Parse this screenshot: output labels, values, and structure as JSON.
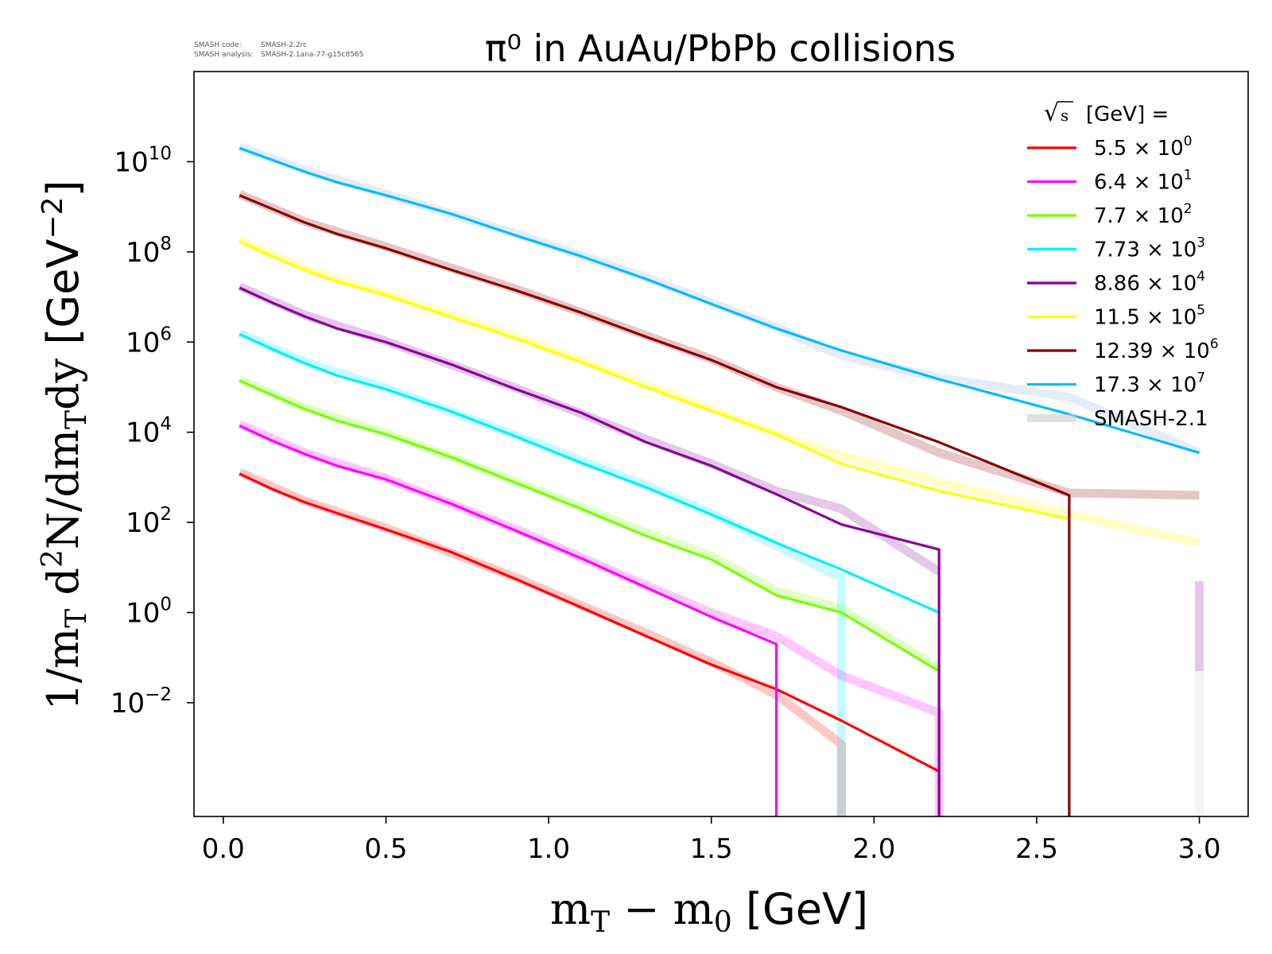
{
  "header": {
    "code_label": "SMASH code:",
    "code_value": "SMASH-2.2rc",
    "analysis_label": "SMASH analysis:",
    "analysis_value": "SMASH-2.1ana-77-g15c8565"
  },
  "chart_data": {
    "type": "line",
    "title": "π⁰ in AuAu/PbPb collisions",
    "xlabel": "m_T − m_0 [GeV]",
    "ylabel": "1/m_T d²N/dm_T dy [GeV⁻²]",
    "xlim": [
      -0.09,
      3.15
    ],
    "ylim": [
      3e-05,
      1000000000000
    ],
    "yscale": "log",
    "grid": false,
    "legend_position": "top-right",
    "legend_title": "√s [GeV] =",
    "x_ticks": [
      "0.0",
      "0.5",
      "1.0",
      "1.5",
      "2.0",
      "2.5",
      "3.0"
    ],
    "y_ticks": [
      {
        "mantissa": "10",
        "exponent": "−2"
      },
      {
        "mantissa": "10",
        "exponent": "0"
      },
      {
        "mantissa": "10",
        "exponent": "2"
      },
      {
        "mantissa": "10",
        "exponent": "4"
      },
      {
        "mantissa": "10",
        "exponent": "6"
      },
      {
        "mantissa": "10",
        "exponent": "8"
      },
      {
        "mantissa": "10",
        "exponent": "10"
      }
    ],
    "series": [
      {
        "name": "5.5 × 10",
        "name_sup": "0",
        "color": "#ff0000",
        "x": [
          0.05,
          0.15,
          0.25,
          0.35,
          0.5,
          0.7,
          0.9,
          1.1,
          1.3,
          1.5,
          1.7,
          1.9,
          2.2
        ],
        "y": [
          1200,
          550,
          280,
          160,
          70,
          22,
          5.5,
          1.3,
          0.3,
          0.07,
          0.02,
          0.004,
          0.0003
        ]
      },
      {
        "name": "6.4 × 10",
        "name_sup": "1",
        "color": "#ff00ff",
        "x": [
          0.05,
          0.15,
          0.25,
          0.35,
          0.5,
          0.7,
          0.9,
          1.1,
          1.3,
          1.5,
          1.7,
          1.7
        ],
        "y": [
          14000,
          6500,
          3300,
          1800,
          900,
          260,
          65,
          16,
          3.6,
          0.8,
          0.2,
          3e-05
        ]
      },
      {
        "name": "7.7 × 10",
        "name_sup": "2",
        "color": "#77ff00",
        "x": [
          0.05,
          0.15,
          0.25,
          0.35,
          0.5,
          0.7,
          0.9,
          1.1,
          1.3,
          1.5,
          1.7,
          1.9,
          2.2,
          2.2
        ],
        "y": [
          140000,
          67000,
          33000,
          18000,
          9000,
          2800,
          750,
          200,
          50,
          15,
          2.4,
          1.0,
          0.05,
          3e-05
        ]
      },
      {
        "name": "7.73 × 10",
        "name_sup": "3",
        "color": "#00eeff",
        "x": [
          0.05,
          0.15,
          0.25,
          0.35,
          0.5,
          0.7,
          0.9,
          1.1,
          1.3,
          1.5,
          1.7,
          1.9,
          2.2
        ],
        "y": [
          1500000,
          700000,
          340000,
          180000,
          90000,
          29000,
          8000,
          2100,
          600,
          150,
          35,
          9,
          1.0
        ]
      },
      {
        "name": "8.86 × 10",
        "name_sup": "4",
        "color": "#880099",
        "x": [
          0.05,
          0.15,
          0.25,
          0.35,
          0.5,
          0.7,
          0.9,
          1.1,
          1.3,
          1.5,
          1.7,
          1.9,
          2.2,
          2.2
        ],
        "y": [
          16000000,
          7500000,
          3700000,
          2000000,
          1000000,
          320000,
          90000,
          27000,
          6000,
          1800,
          420,
          90,
          25,
          3e-05
        ]
      },
      {
        "name": "11.5 × 10",
        "name_sup": "5",
        "color": "#ffff00",
        "x": [
          0.05,
          0.15,
          0.25,
          0.35,
          0.5,
          0.7,
          0.9,
          1.1,
          1.3,
          1.5,
          1.7,
          1.9,
          2.2,
          2.6
        ],
        "y": [
          170000000,
          80000000,
          40000000,
          22000000,
          11000000,
          3600000,
          1200000,
          360000,
          100000,
          30000,
          9000,
          2000,
          500,
          120
        ]
      },
      {
        "name": "12.39 × 10",
        "name_sup": "6",
        "color": "#880000",
        "x": [
          0.05,
          0.15,
          0.25,
          0.35,
          0.5,
          0.7,
          0.9,
          1.1,
          1.3,
          1.5,
          1.7,
          1.9,
          2.2,
          2.6,
          2.6
        ],
        "y": [
          1800000000,
          900000000,
          450000000,
          250000000,
          120000000,
          40000000,
          14000000,
          4500000,
          1300000,
          400000,
          100000,
          36000,
          6000,
          400,
          3e-05
        ]
      },
      {
        "name": "17.3 × 10",
        "name_sup": "7",
        "color": "#00bbff",
        "x": [
          0.05,
          0.15,
          0.25,
          0.35,
          0.5,
          0.7,
          0.9,
          1.1,
          1.3,
          1.5,
          1.7,
          1.9,
          2.2,
          2.6,
          3.0
        ],
        "y": [
          20000000000,
          11000000000,
          6000000000,
          3500000000,
          1800000000,
          700000000,
          230000000,
          80000000,
          25000000,
          7000000,
          2000000,
          650000,
          150000,
          25000,
          3500
        ]
      },
      {
        "name": "SMASH-2.1",
        "name_sup": "",
        "color": "#cccccc",
        "legend_only": true,
        "x": [],
        "y": []
      }
    ],
    "reference_series": [
      {
        "color": "#ff0000",
        "x": [
          0.05,
          0.25,
          0.5,
          0.9,
          1.3,
          1.5,
          1.7,
          1.9,
          1.9
        ],
        "y": [
          1300,
          300,
          75,
          6,
          0.35,
          0.08,
          0.015,
          0.0012,
          3e-05
        ]
      },
      {
        "color": "#ff00ff",
        "x": [
          0.05,
          0.25,
          0.5,
          0.9,
          1.3,
          1.5,
          1.7,
          1.9,
          2.2,
          2.2
        ],
        "y": [
          15000,
          3500,
          950,
          70,
          4,
          1.0,
          0.3,
          0.04,
          0.006,
          3e-05
        ]
      },
      {
        "color": "#77ff00",
        "x": [
          0.05,
          0.25,
          0.5,
          0.9,
          1.3,
          1.5,
          1.7,
          1.9,
          2.2
        ],
        "y": [
          150000,
          35000,
          9500,
          800,
          60,
          18,
          3,
          1.2,
          0.06
        ]
      },
      {
        "color": "#00eeff",
        "x": [
          0.05,
          0.25,
          0.5,
          0.9,
          1.3,
          1.5,
          1.7,
          1.9,
          1.9
        ],
        "y": [
          1600000,
          360000,
          95000,
          8500,
          650,
          160,
          30,
          6,
          3e-05
        ]
      },
      {
        "color": "#880099",
        "x": [
          0.05,
          0.25,
          0.5,
          0.9,
          1.3,
          1.5,
          1.7,
          1.9,
          2.2
        ],
        "y": [
          17000000,
          4000000,
          1050000,
          95000,
          7000,
          2000,
          500,
          200,
          8
        ]
      },
      {
        "color": "#880099",
        "x": [
          3.0,
          3.0
        ],
        "y": [
          5,
          0.05
        ]
      },
      {
        "color": "#ffff00",
        "x": [
          0.05,
          0.25,
          0.5,
          0.9,
          1.3,
          1.5,
          1.7,
          1.9,
          2.2,
          2.6,
          3.0
        ],
        "y": [
          180000000,
          42000000,
          11500000,
          1300000,
          110000,
          32000,
          9000,
          3000,
          800,
          150,
          35
        ]
      },
      {
        "color": "#880000",
        "x": [
          0.05,
          0.25,
          0.5,
          0.9,
          1.3,
          1.5,
          1.7,
          1.9,
          2.2,
          2.6,
          3.0
        ],
        "y": [
          1900000000,
          470000000,
          130000000,
          15000000,
          1400000,
          420000,
          100000,
          30000,
          3500,
          450,
          400
        ]
      },
      {
        "color": "#88aadd",
        "x": [
          0.05,
          0.25,
          0.5,
          0.9,
          1.3,
          1.5,
          1.7,
          1.9,
          2.2,
          2.6,
          3.0
        ],
        "y": [
          21000000000,
          6500000000,
          1900000000,
          250000000,
          27000000,
          7500000,
          2100000,
          500000,
          160000,
          60000,
          3500
        ]
      },
      {
        "color": "#cccccc",
        "x": [
          1.9,
          1.9
        ],
        "y": [
          0.0012,
          3e-05
        ]
      },
      {
        "color": "#cccccc",
        "x": [
          3.0,
          3.0
        ],
        "y": [
          0.05,
          3e-05
        ]
      }
    ]
  }
}
